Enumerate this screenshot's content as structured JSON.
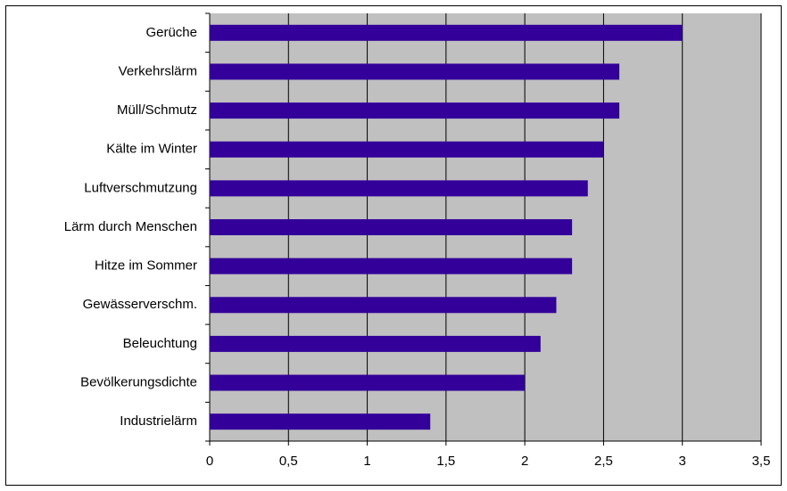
{
  "chart_data": {
    "type": "bar",
    "orientation": "horizontal",
    "categories": [
      "Gerüche",
      "Verkehrslärm",
      "Müll/Schmutz",
      "Kälte im Winter",
      "Luftverschmutzung",
      "Lärm durch Menschen",
      "Hitze im Sommer",
      "Gewässerverschm.",
      "Beleuchtung",
      "Bevölkerungsdichte",
      "Industrielärm"
    ],
    "values": [
      3.0,
      2.6,
      2.6,
      2.5,
      2.4,
      2.3,
      2.3,
      2.2,
      2.1,
      2.0,
      1.4
    ],
    "color": "#330099",
    "xlim": [
      0,
      3.5
    ],
    "xticks": [
      0,
      {
        "value": 0.5,
        "label": "0,5"
      },
      1,
      {
        "value": 1.5,
        "label": "1,5"
      },
      2,
      {
        "value": 2.5,
        "label": "2,5"
      },
      3,
      {
        "value": 3.5,
        "label": "3,5"
      }
    ],
    "grid": true,
    "plot_background": "#c0c0c0"
  }
}
